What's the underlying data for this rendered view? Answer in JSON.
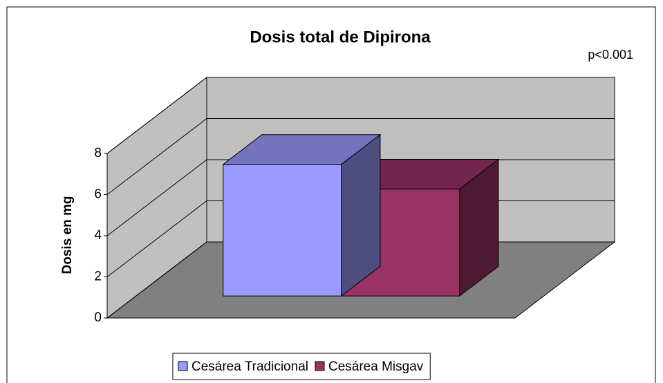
{
  "chart_data": {
    "type": "bar3d",
    "title": "Dosis total de Dipirona",
    "annotation": "p<0.001",
    "ylabel": "Dosis en mg",
    "series": [
      {
        "name": "Cesárea Tradicional",
        "color": "#9999ff",
        "values": [
          6.4
        ]
      },
      {
        "name": "Cesárea Misgav",
        "color": "#993366",
        "values": [
          5.2
        ]
      }
    ],
    "ylim": [
      0,
      8
    ],
    "yticks": [
      0,
      2,
      4,
      6,
      8
    ],
    "grid": true,
    "legend": "bottom"
  }
}
